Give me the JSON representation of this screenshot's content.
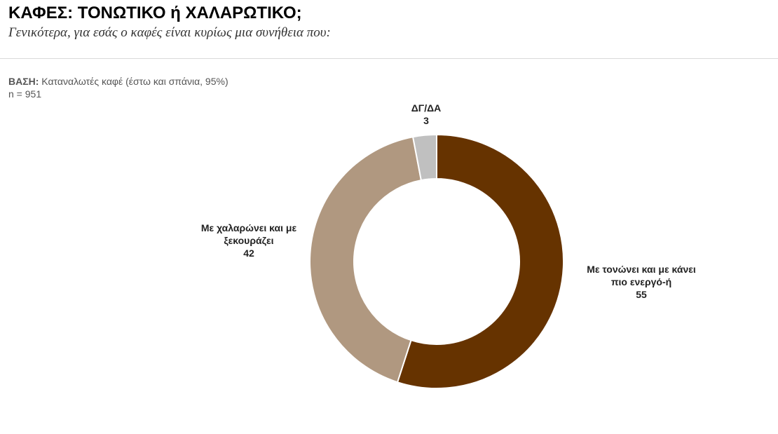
{
  "header": {
    "title": "ΚΑΦΕΣ: ΤΟΝΩΤΙΚΟ ή ΧΑΛΑΡΩΤΙΚΟ;",
    "subtitle": "Γενικότερα, για εσάς ο καφές είναι κυρίως μια συνήθεια που:"
  },
  "base": {
    "label": "ΒΑΣΗ:",
    "text": "Καταναλωτές καφέ (έστω και σπάνια, 95%)",
    "n": "n = 951"
  },
  "chart_data": {
    "type": "pie",
    "donut": true,
    "title": "",
    "slices": [
      {
        "label_lines": [
          "Με τονώνει και με κάνει",
          "πιο ενεργό-ή"
        ],
        "value": 55,
        "value_text": "55",
        "color": "#663300"
      },
      {
        "label_lines": [
          "Με χαλαρώνει και με",
          "ξεκουράζει"
        ],
        "value": 42,
        "value_text": "42",
        "color": "#b09880"
      },
      {
        "label_lines": [
          "ΔΓ/ΔΑ"
        ],
        "value": 3,
        "value_text": "3",
        "color": "#c0c0c0"
      }
    ],
    "legend": "none"
  }
}
